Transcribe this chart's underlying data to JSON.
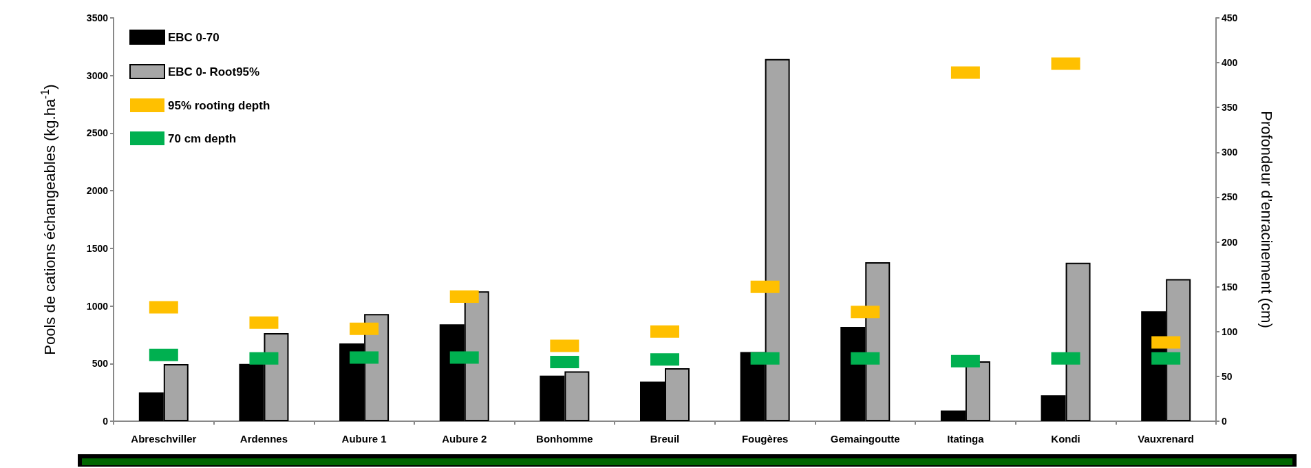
{
  "chart_data": {
    "type": "bar",
    "ylabel": "Pools de cations échangeables (kg.ha$^{-1}$)",
    "y2label": "Profondeur d’enracinement (cm)",
    "categories": [
      "Abreschviller",
      "Ardennes",
      "Aubure 1",
      "Aubure 2",
      "Bonhomme",
      "Breuil",
      "Fougères",
      "Gemaingoutte",
      "Itatinga",
      "Kondi",
      "Vauxrenard"
    ],
    "series": [
      {
        "name": "EBC 0-70",
        "color": "#000000",
        "values": [
          250,
          497,
          675,
          840,
          396,
          343,
          601,
          818,
          92,
          225,
          954
        ]
      },
      {
        "name": "EBC 0- Root95%",
        "color": "#a6a6a6",
        "values": [
          495,
          765,
          930,
          1127,
          433,
          460,
          3143,
          1380,
          519,
          1375,
          1233
        ]
      },
      {
        "name": "95% rooting depth",
        "type": "scatter",
        "axis": "y2",
        "marker": "square",
        "color": "#ffc000",
        "values": [
          127,
          110,
          103,
          139,
          84,
          100,
          150,
          122,
          389,
          399,
          88
        ]
      },
      {
        "name": "70 cm depth",
        "type": "scatter",
        "axis": "y2",
        "marker": "square",
        "color": "#00b050",
        "values": [
          74,
          70,
          71,
          71,
          66,
          69,
          70,
          70,
          67,
          70,
          70
        ]
      }
    ],
    "ylim": [
      0,
      3500
    ],
    "yticks": [
      0,
      500,
      1000,
      1500,
      2000,
      2500,
      3000,
      3500
    ],
    "y2lim": [
      0,
      450
    ],
    "y2ticks": [
      0,
      50,
      100,
      150,
      200,
      250,
      300,
      350,
      400,
      450
    ],
    "legend": "top left",
    "grid": false
  }
}
